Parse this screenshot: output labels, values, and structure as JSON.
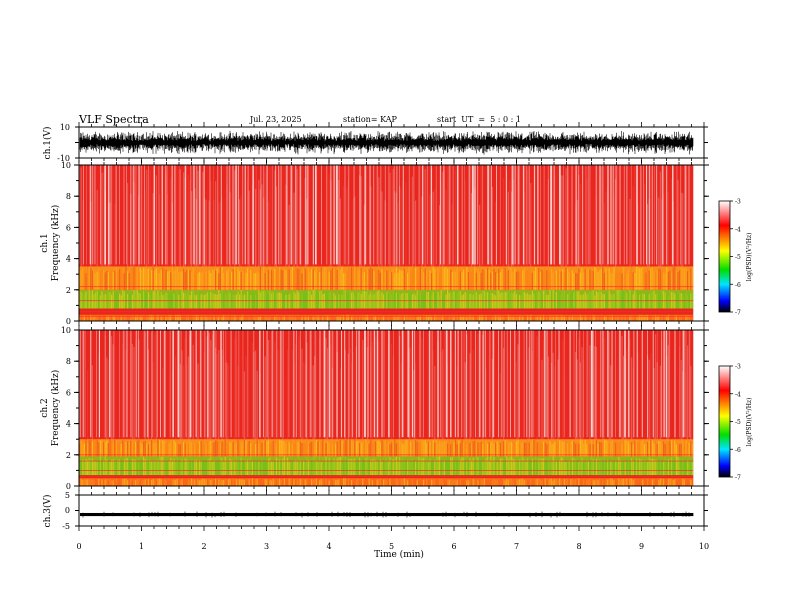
{
  "header": {
    "title": "VLF Spectra",
    "date": "Jul. 23, 2025",
    "station": "station= KAP",
    "start": "start  UT  =  5 : 0 : 1"
  },
  "colors": {
    "spectrogram_background": "#e8261e",
    "colorbar": [
      "#ffffff",
      "#ff0000",
      "#ffff00",
      "#00dd00",
      "#00e5ff",
      "#0000ff",
      "#000000"
    ],
    "trace": "#000000"
  },
  "chart_data": [
    {
      "type": "line",
      "panel": "ch1-waveform",
      "ylabel": "ch.1(V)",
      "ylim": [
        -10,
        10
      ],
      "yticks": [
        "10",
        "-10"
      ],
      "x_range_min": [
        0,
        9.83
      ],
      "description_values": {
        "typical_swing_V": [
          -8,
          8
        ]
      }
    },
    {
      "type": "heatmap",
      "panel": "ch1-spectrogram",
      "ylabel_line1": "ch.1",
      "ylabel_line2": "Frequency (kHz)",
      "ylim": [
        0,
        10
      ],
      "yticks": [
        "0",
        "2",
        "4",
        "6",
        "8",
        "10"
      ],
      "x_range_min": [
        0,
        9.83
      ],
      "colorbar": {
        "label": "log(PSD)(V²/Hz)",
        "range": [
          -7,
          -3
        ],
        "ticks": [
          "-3",
          "-4",
          "-5",
          "-6",
          "-7"
        ]
      },
      "bands_khz": [
        {
          "from": 0,
          "to": 0.4,
          "level": "orange/yellow"
        },
        {
          "from": 0.8,
          "to": 2.0,
          "level": "green/yellow"
        },
        {
          "from": 2.0,
          "to": 3.5,
          "level": "yellow/orange"
        },
        {
          "from": 3.5,
          "to": 10,
          "level": "red/white"
        }
      ],
      "lines_khz": [
        0.3,
        0.6,
        1.3,
        2.2
      ]
    },
    {
      "type": "heatmap",
      "panel": "ch2-spectrogram",
      "ylabel_line1": "ch.2",
      "ylabel_line2": "Frequency (kHz)",
      "ylim": [
        0,
        10
      ],
      "yticks": [
        "0",
        "2",
        "4",
        "6",
        "8",
        "10"
      ],
      "x_range_min": [
        0,
        9.83
      ],
      "colorbar": {
        "label": "log(PSD)(V²/Hz)",
        "range": [
          -7,
          -3
        ],
        "ticks": [
          "-3",
          "-4",
          "-5",
          "-6",
          "-7"
        ]
      },
      "bands_khz": [
        {
          "from": 0,
          "to": 0.5,
          "level": "orange/yellow"
        },
        {
          "from": 0.7,
          "to": 1.9,
          "level": "green/yellow"
        },
        {
          "from": 1.9,
          "to": 3.0,
          "level": "yellow/orange"
        },
        {
          "from": 3.0,
          "to": 10,
          "level": "red/white"
        }
      ],
      "lines_khz": [
        0.6,
        1.0,
        1.6,
        2.0
      ]
    },
    {
      "type": "line",
      "panel": "ch3-waveform",
      "ylabel": "ch.3(V)",
      "ylim": [
        -5,
        5
      ],
      "yticks": [
        "5",
        "0",
        "-5"
      ],
      "x_range_min": [
        0,
        9.83
      ],
      "description_values": {
        "approx_level_V": -1.3,
        "band_V": [
          -1.8,
          -0.8
        ]
      }
    },
    {
      "type": "axis",
      "xlabel": "Time (min)",
      "xlim": [
        0,
        10
      ],
      "xticks": [
        "0",
        "1",
        "2",
        "3",
        "4",
        "5",
        "6",
        "7",
        "8",
        "9",
        "10"
      ]
    }
  ]
}
